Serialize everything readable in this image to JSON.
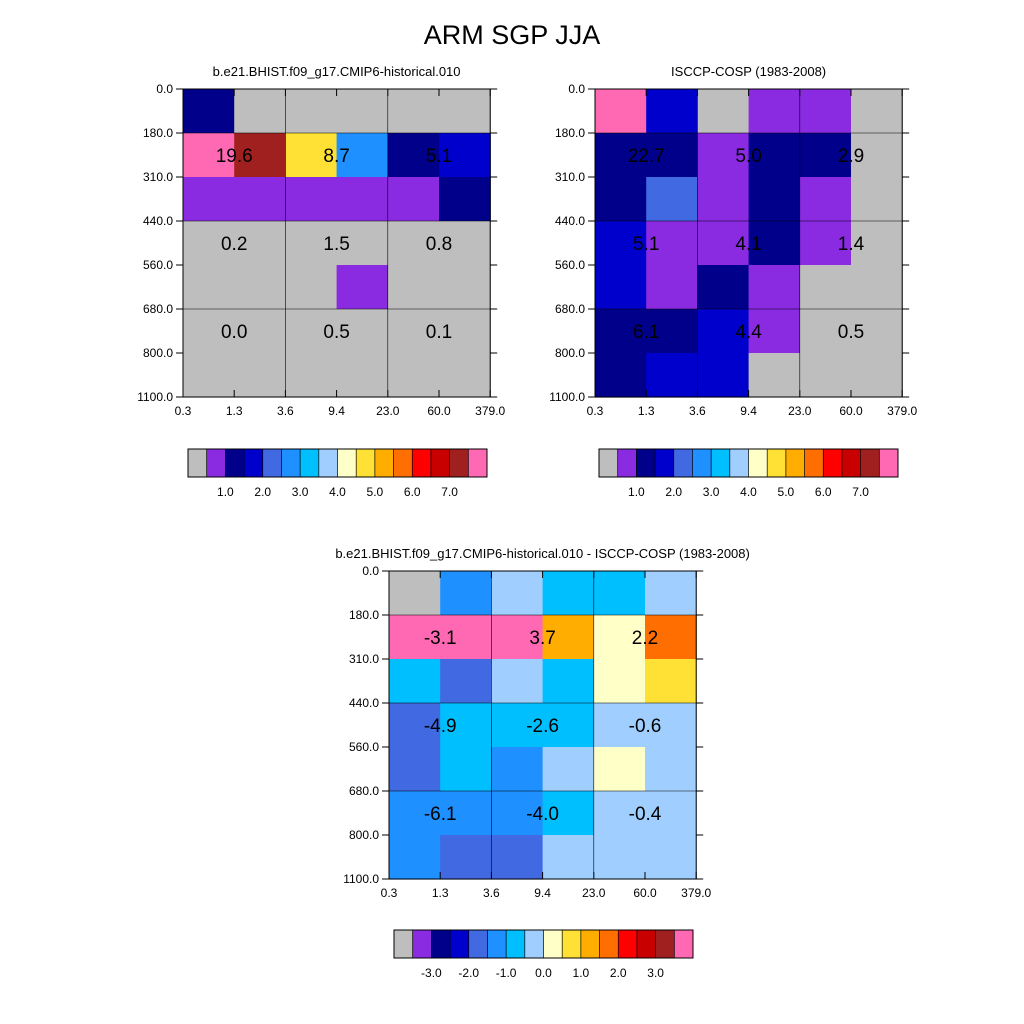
{
  "page": {
    "title": "ARM SGP JJA"
  },
  "palette": {
    "bins": [
      "#bebebe",
      "#8a2be2",
      "#00008b",
      "#0000cd",
      "#4169e1",
      "#1e90ff",
      "#00bfff",
      "#a0cfff",
      "#ffffc8",
      "#ffe135",
      "#ffad00",
      "#ff6e00",
      "#ff0000",
      "#c80000",
      "#a02020",
      "#ff69b4"
    ]
  },
  "chart_data": [
    {
      "id": "model",
      "type": "heatmap",
      "title": "b.e21.BHIST.f09_g17.CMIP6-historical.010",
      "x_ticks": [
        "0.3",
        "1.3",
        "3.6",
        "9.4",
        "23.0",
        "60.0",
        "379.0"
      ],
      "y_ticks": [
        "0.0",
        "180.0",
        "310.0",
        "440.0",
        "560.0",
        "680.0",
        "800.0",
        "1100.0"
      ],
      "y_label": "",
      "x_label": "",
      "cell_bins": [
        [
          2,
          0,
          0,
          0,
          0,
          0
        ],
        [
          15,
          14,
          9,
          5,
          2,
          3
        ],
        [
          1,
          1,
          1,
          1,
          1,
          2
        ],
        [
          0,
          0,
          0,
          0,
          0,
          0
        ],
        [
          0,
          0,
          0,
          1,
          0,
          0
        ],
        [
          0,
          0,
          0,
          0,
          0,
          0
        ],
        [
          0,
          0,
          0,
          0,
          0,
          0
        ]
      ],
      "group_labels": [
        {
          "row": 1,
          "col": 0,
          "text": "19.6"
        },
        {
          "row": 1,
          "col": 1,
          "text": "8.7"
        },
        {
          "row": 1,
          "col": 2,
          "text": "5.1"
        },
        {
          "row": 3,
          "col": 0,
          "text": "0.2"
        },
        {
          "row": 3,
          "col": 1,
          "text": "1.5"
        },
        {
          "row": 3,
          "col": 2,
          "text": "0.8"
        },
        {
          "row": 5,
          "col": 0,
          "text": "0.0"
        },
        {
          "row": 5,
          "col": 1,
          "text": "0.5"
        },
        {
          "row": 5,
          "col": 2,
          "text": "0.1"
        }
      ],
      "colorbar_labels": [
        "1.0",
        "2.0",
        "3.0",
        "4.0",
        "5.0",
        "6.0",
        "7.0"
      ]
    },
    {
      "id": "obs",
      "type": "heatmap",
      "title": "ISCCP-COSP (1983-2008)",
      "x_ticks": [
        "0.3",
        "1.3",
        "3.6",
        "9.4",
        "23.0",
        "60.0",
        "379.0"
      ],
      "y_ticks": [
        "0.0",
        "180.0",
        "310.0",
        "440.0",
        "560.0",
        "680.0",
        "800.0",
        "1100.0"
      ],
      "y_label": "",
      "x_label": "",
      "cell_bins": [
        [
          15,
          3,
          0,
          1,
          1,
          0
        ],
        [
          2,
          2,
          1,
          2,
          2,
          0
        ],
        [
          2,
          4,
          1,
          2,
          1,
          0
        ],
        [
          3,
          1,
          1,
          2,
          1,
          0
        ],
        [
          3,
          1,
          2,
          1,
          0,
          0
        ],
        [
          2,
          2,
          3,
          1,
          0,
          0
        ],
        [
          2,
          3,
          3,
          0,
          0,
          0
        ]
      ],
      "group_labels": [
        {
          "row": 1,
          "col": 0,
          "text": "22.7"
        },
        {
          "row": 1,
          "col": 1,
          "text": "5.0"
        },
        {
          "row": 1,
          "col": 2,
          "text": "2.9"
        },
        {
          "row": 3,
          "col": 0,
          "text": "5.1"
        },
        {
          "row": 3,
          "col": 1,
          "text": "4.1"
        },
        {
          "row": 3,
          "col": 2,
          "text": "1.4"
        },
        {
          "row": 5,
          "col": 0,
          "text": "6.1"
        },
        {
          "row": 5,
          "col": 1,
          "text": "4.4"
        },
        {
          "row": 5,
          "col": 2,
          "text": "0.5"
        }
      ],
      "colorbar_labels": [
        "1.0",
        "2.0",
        "3.0",
        "4.0",
        "5.0",
        "6.0",
        "7.0"
      ]
    },
    {
      "id": "diff",
      "type": "heatmap",
      "title": "b.e21.BHIST.f09_g17.CMIP6-historical.010 - ISCCP-COSP (1983-2008)",
      "x_ticks": [
        "0.3",
        "1.3",
        "3.6",
        "9.4",
        "23.0",
        "60.0",
        "379.0"
      ],
      "y_ticks": [
        "0.0",
        "180.0",
        "310.0",
        "440.0",
        "560.0",
        "680.0",
        "800.0",
        "1100.0"
      ],
      "y_label": "",
      "x_label": "",
      "cell_bins": [
        [
          0,
          5,
          7,
          6,
          6,
          7
        ],
        [
          15,
          15,
          15,
          10,
          8,
          11
        ],
        [
          6,
          4,
          7,
          6,
          8,
          9
        ],
        [
          4,
          6,
          6,
          6,
          7,
          7
        ],
        [
          4,
          6,
          5,
          7,
          8,
          7
        ],
        [
          5,
          5,
          5,
          6,
          7,
          7
        ],
        [
          5,
          4,
          4,
          7,
          7,
          7
        ]
      ],
      "group_labels": [
        {
          "row": 1,
          "col": 0,
          "text": "-3.1"
        },
        {
          "row": 1,
          "col": 1,
          "text": "3.7"
        },
        {
          "row": 1,
          "col": 2,
          "text": "2.2"
        },
        {
          "row": 3,
          "col": 0,
          "text": "-4.9"
        },
        {
          "row": 3,
          "col": 1,
          "text": "-2.6"
        },
        {
          "row": 3,
          "col": 2,
          "text": "-0.6"
        },
        {
          "row": 5,
          "col": 0,
          "text": "-6.1"
        },
        {
          "row": 5,
          "col": 1,
          "text": "-4.0"
        },
        {
          "row": 5,
          "col": 2,
          "text": "-0.4"
        }
      ],
      "colorbar_labels": [
        "-3.0",
        "-2.0",
        "-1.0",
        "0.0",
        "1.0",
        "2.0",
        "3.0"
      ]
    }
  ]
}
